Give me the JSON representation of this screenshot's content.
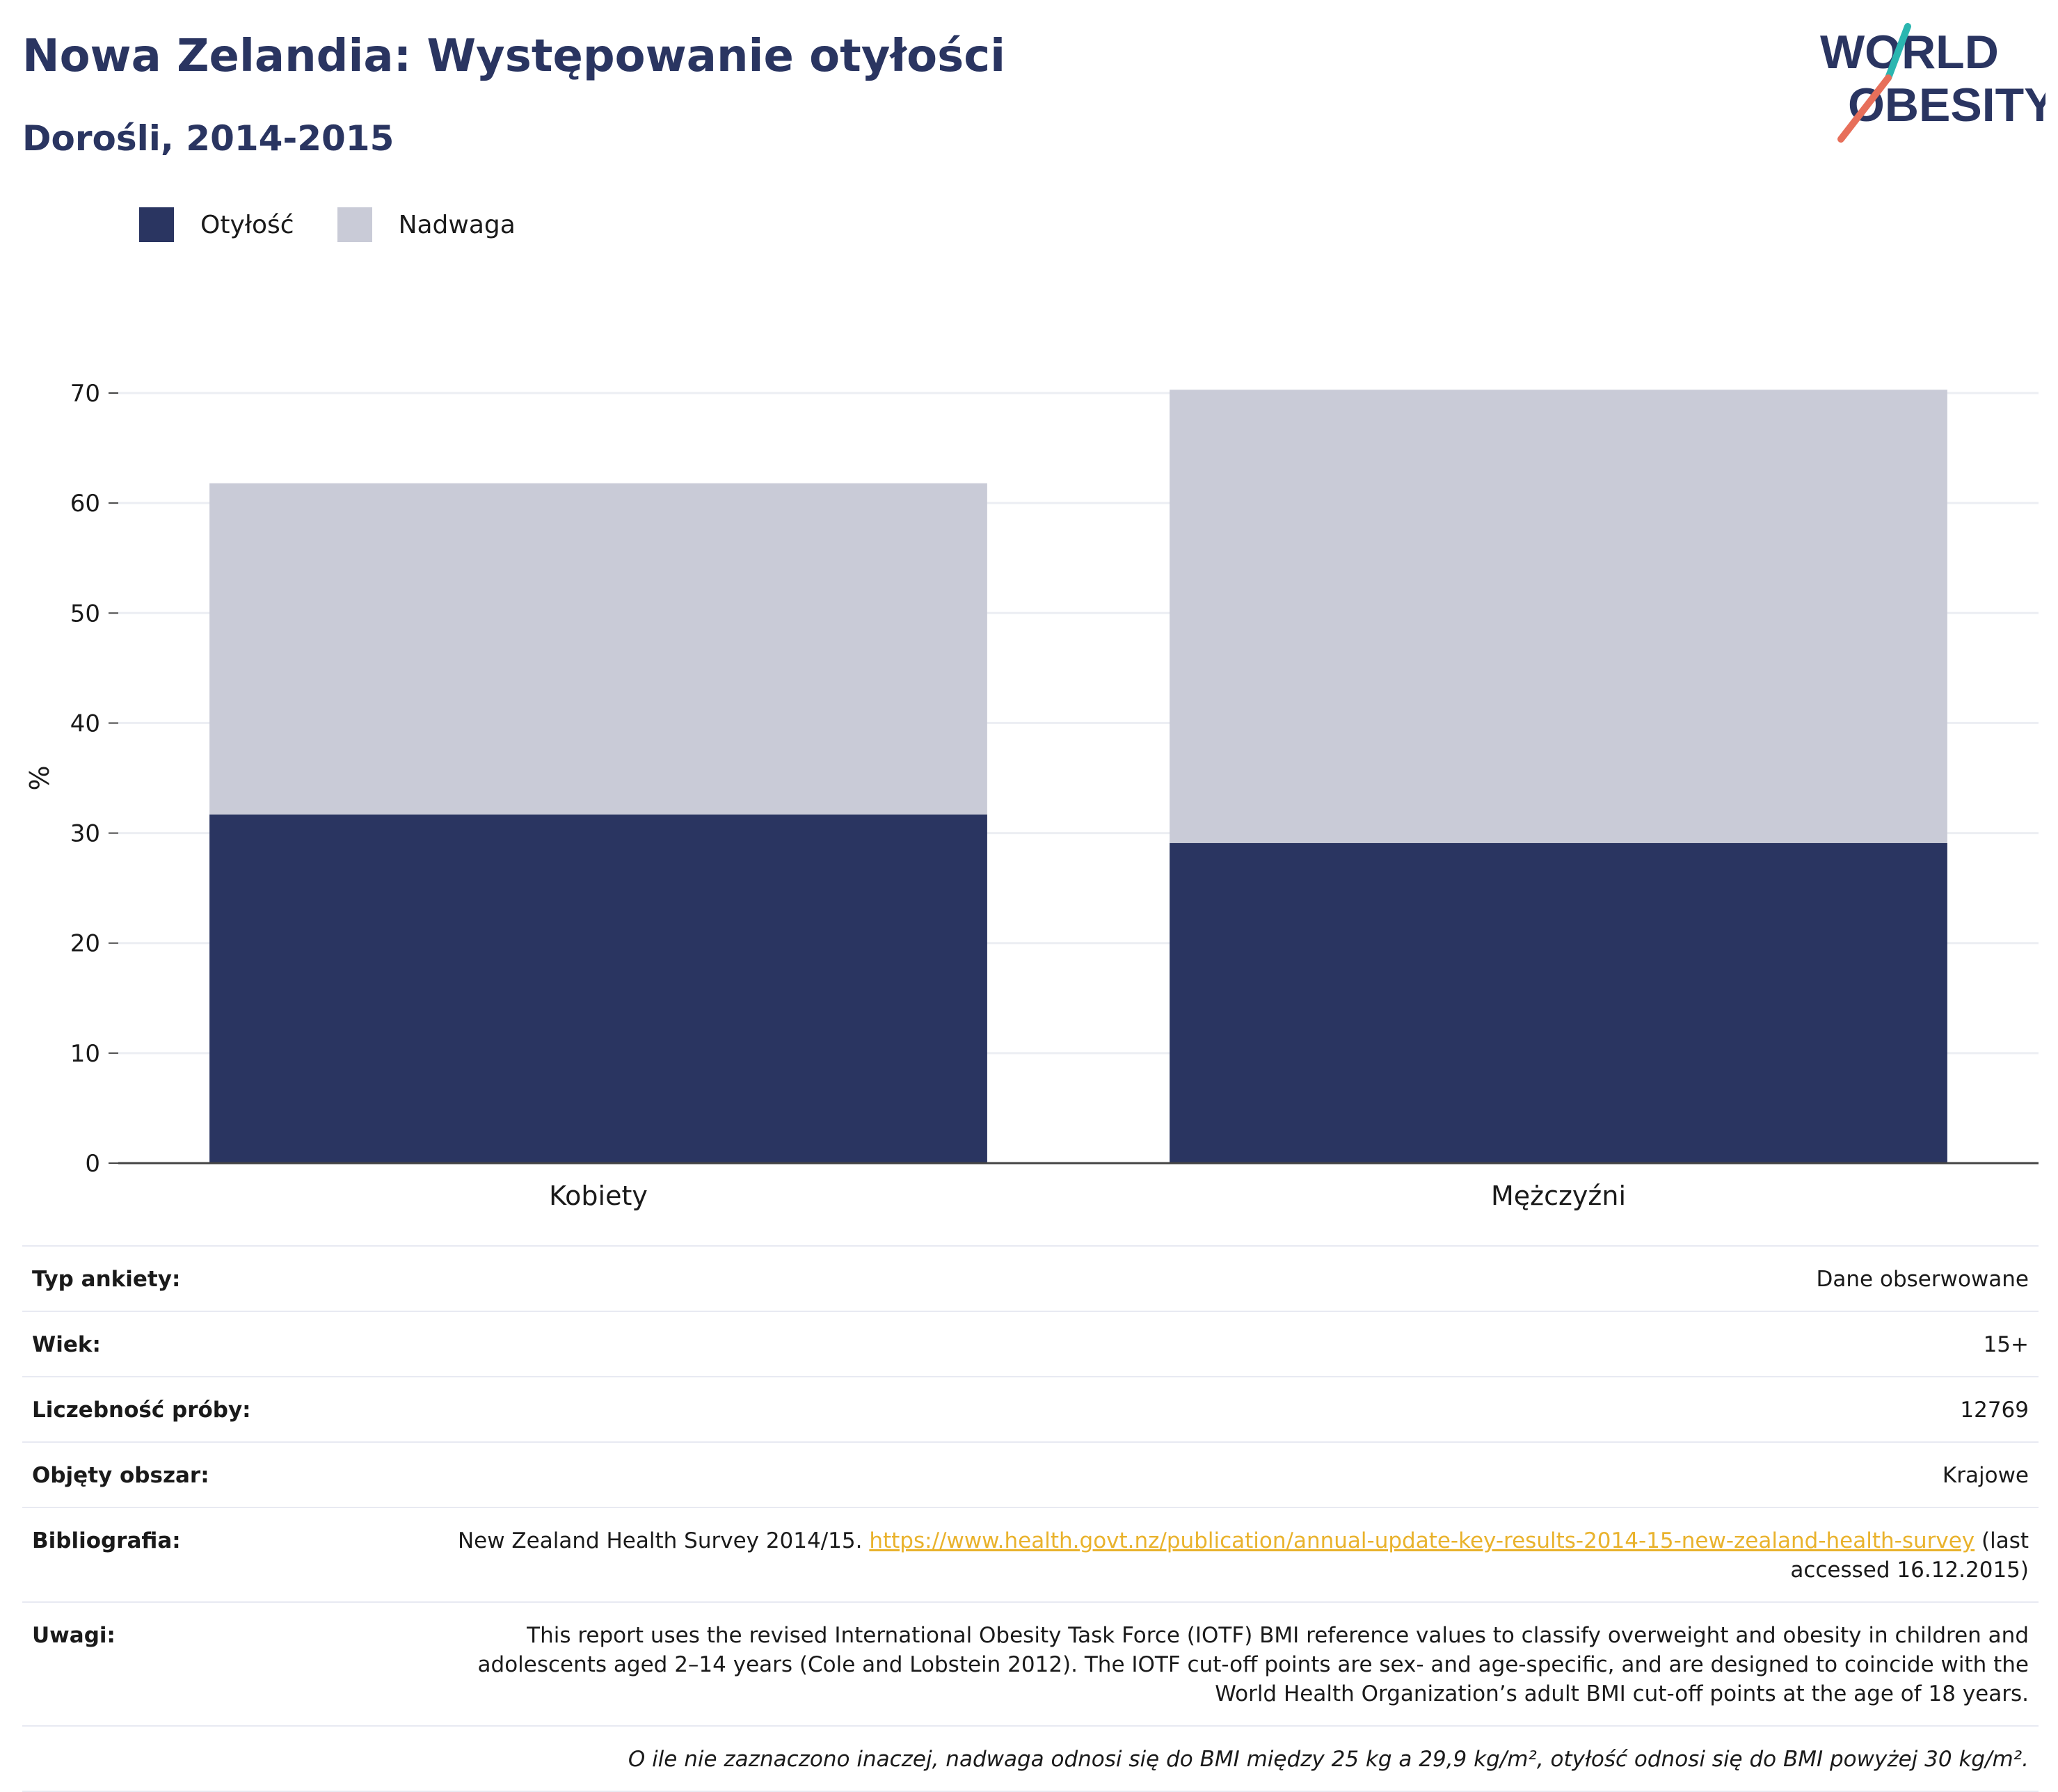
{
  "header": {
    "title": "Nowa Zelandia: Występowanie otyłości",
    "subtitle": "Dorośli, 2014-2015"
  },
  "logo": {
    "line1": "WORLD",
    "line2": "OBESITY"
  },
  "colors": {
    "obesity": "#2a3561",
    "overweight": "#c9cbd7",
    "accent_teal": "#2bb6b0",
    "accent_red": "#e76f5a",
    "link": "#e9b22c"
  },
  "chart_data": {
    "type": "bar",
    "stacked": true,
    "categories": [
      "Kobiety",
      "Mężczyźni"
    ],
    "series": [
      {
        "name": "Otyłość",
        "values": [
          31.7,
          29.1
        ]
      },
      {
        "name": "Nadwaga",
        "values": [
          30.1,
          41.2
        ]
      }
    ],
    "ylabel": "%",
    "ylim": [
      0,
      70
    ],
    "yticks": [
      0,
      10,
      20,
      30,
      40,
      50,
      60,
      70
    ],
    "grid": true,
    "legend": "top-left"
  },
  "meta": {
    "survey_type": {
      "label": "Typ ankiety:",
      "value": "Dane obserwowane"
    },
    "age": {
      "label": "Wiek:",
      "value": "15+"
    },
    "sample_size": {
      "label": "Liczebność próby:",
      "value": "12769"
    },
    "area": {
      "label": "Objęty obszar:",
      "value": "Krajowe"
    },
    "bibliography": {
      "label": "Bibliografia:",
      "text_before": "New Zealand Health Survey 2014/15.",
      "link": "https://www.health.govt.nz/publication/annual-update-key-results-2014-15-new-zealand-health-survey",
      "text_after": "(last accessed 16.12.2015)"
    },
    "notes": {
      "label": "Uwagi:",
      "value": "This report uses the revised International Obesity Task Force (IOTF) BMI reference values to classify overweight and obesity in children and adolescents aged 2–14 years (Cole and Lobstein 2012). The IOTF cut-off points are sex- and age-specific, and are designed to coincide with the World Health Organization’s adult BMI cut-off points at the age of 18 years."
    },
    "footnote": "O ile nie zaznaczono inaczej, nadwaga odnosi się do BMI między 25 kg a 29,9 kg/m², otyłość odnosi się do BMI powyżej 30 kg/m²."
  }
}
